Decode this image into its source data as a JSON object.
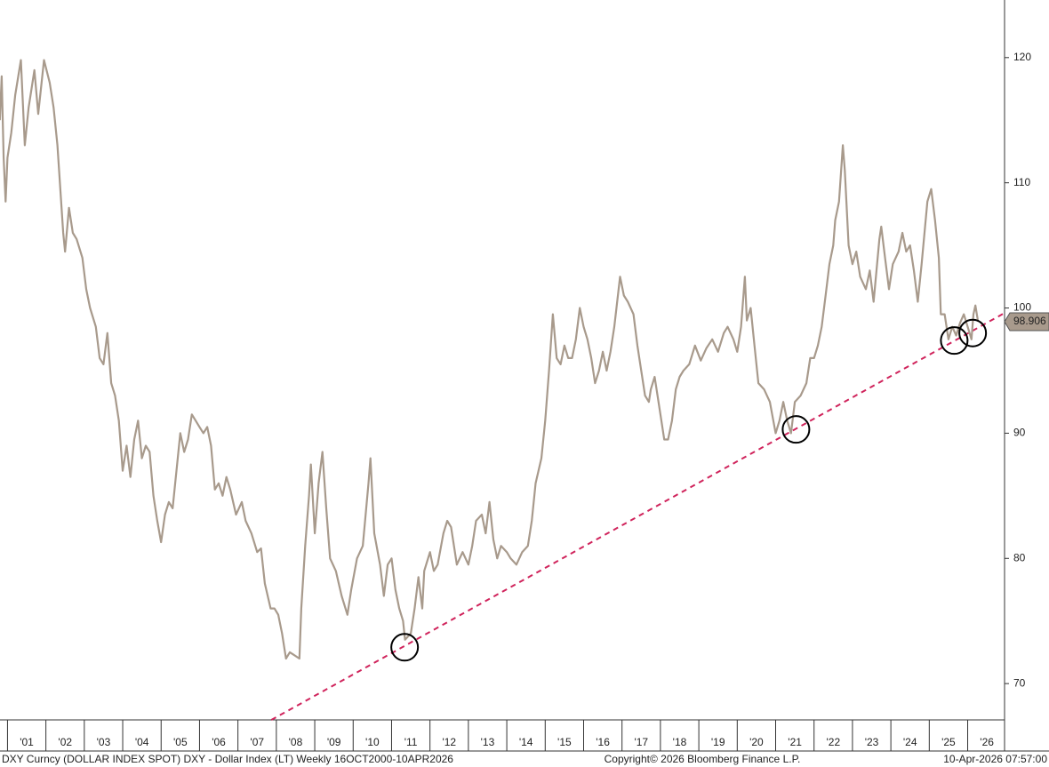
{
  "chart_data": {
    "type": "line",
    "footer_left": "DXY Curncy (DOLLAR INDEX SPOT) DXY - Dollar Index (LT) Weekly 16OCT2000-10APR2026",
    "footer_center": "Copyright© 2026 Bloomberg Finance L.P.",
    "footer_right": "10-Apr-2026 07:57:00",
    "x": [
      2000.8,
      2000.85,
      2000.9,
      2000.95,
      2001.0,
      2001.1,
      2001.2,
      2001.35,
      2001.45,
      2001.55,
      2001.7,
      2001.8,
      2001.95,
      2002.1,
      2002.2,
      2002.3,
      2002.45,
      2002.5,
      2002.6,
      2002.7,
      2002.8,
      2002.95,
      2003.05,
      2003.15,
      2003.3,
      2003.4,
      2003.5,
      2003.6,
      2003.7,
      2003.8,
      2003.9,
      2004.0,
      2004.1,
      2004.2,
      2004.3,
      2004.4,
      2004.5,
      2004.6,
      2004.7,
      2004.8,
      2004.9,
      2005.0,
      2005.1,
      2005.2,
      2005.3,
      2005.4,
      2005.5,
      2005.6,
      2005.7,
      2005.8,
      2005.9,
      2006.0,
      2006.1,
      2006.2,
      2006.3,
      2006.4,
      2006.5,
      2006.6,
      2006.7,
      2006.8,
      2006.95,
      2007.1,
      2007.2,
      2007.35,
      2007.5,
      2007.6,
      2007.7,
      2007.85,
      2007.95,
      2008.05,
      2008.15,
      2008.25,
      2008.35,
      2008.45,
      2008.6,
      2008.65,
      2008.75,
      2008.85,
      2008.9,
      2009.0,
      2009.1,
      2009.2,
      2009.3,
      2009.4,
      2009.55,
      2009.7,
      2009.85,
      2009.95,
      2010.1,
      2010.25,
      2010.4,
      2010.45,
      2010.55,
      2010.7,
      2010.8,
      2010.9,
      2011.0,
      2011.1,
      2011.2,
      2011.3,
      2011.35,
      2011.5,
      2011.6,
      2011.7,
      2011.8,
      2011.85,
      2012.0,
      2012.1,
      2012.2,
      2012.35,
      2012.45,
      2012.55,
      2012.7,
      2012.85,
      2013.0,
      2013.1,
      2013.2,
      2013.35,
      2013.45,
      2013.55,
      2013.65,
      2013.75,
      2013.85,
      2014.0,
      2014.1,
      2014.25,
      2014.4,
      2014.55,
      2014.65,
      2014.75,
      2014.9,
      2015.0,
      2015.1,
      2015.2,
      2015.3,
      2015.4,
      2015.5,
      2015.6,
      2015.7,
      2015.8,
      2015.9,
      2016.0,
      2016.1,
      2016.2,
      2016.3,
      2016.4,
      2016.5,
      2016.6,
      2016.7,
      2016.8,
      2016.95,
      2017.05,
      2017.15,
      2017.3,
      2017.4,
      2017.5,
      2017.6,
      2017.7,
      2017.75,
      2017.85,
      2018.0,
      2018.1,
      2018.2,
      2018.3,
      2018.4,
      2018.5,
      2018.6,
      2018.75,
      2018.9,
      2019.05,
      2019.2,
      2019.35,
      2019.5,
      2019.65,
      2019.75,
      2019.9,
      2020.0,
      2020.1,
      2020.2,
      2020.25,
      2020.35,
      2020.45,
      2020.55,
      2020.7,
      2020.85,
      2021.0,
      2021.1,
      2021.2,
      2021.3,
      2021.4,
      2021.5,
      2021.65,
      2021.8,
      2021.9,
      2022.0,
      2022.1,
      2022.2,
      2022.3,
      2022.4,
      2022.5,
      2022.55,
      2022.65,
      2022.75,
      2022.8,
      2022.9,
      2023.0,
      2023.1,
      2023.2,
      2023.35,
      2023.45,
      2023.55,
      2023.7,
      2023.75,
      2023.85,
      2023.95,
      2024.05,
      2024.2,
      2024.3,
      2024.4,
      2024.5,
      2024.6,
      2024.7,
      2024.8,
      2024.95,
      2025.05,
      2025.15,
      2025.25,
      2025.3,
      2025.4,
      2025.5,
      2025.6,
      2025.7,
      2025.8,
      2025.9,
      2026.0,
      2026.1,
      2026.15,
      2026.2,
      2026.27
    ],
    "series": [
      {
        "color": "#a89a8c",
        "values": [
          115,
          118.5,
          112,
          108.5,
          112,
          114,
          117,
          119.8,
          113,
          116,
          119,
          115.5,
          119.8,
          118,
          116,
          113,
          106,
          104.5,
          108,
          106,
          105.5,
          104,
          101.5,
          100,
          98.5,
          96,
          95.5,
          98,
          94,
          93,
          91,
          87,
          89,
          86.5,
          89.5,
          91,
          88,
          89,
          88.5,
          85,
          83,
          81.3,
          83.5,
          84.5,
          84,
          87,
          90,
          88.5,
          89.5,
          91.5,
          91,
          90.5,
          90,
          90.5,
          89,
          85.5,
          86,
          85,
          86.5,
          85.5,
          83.5,
          84.5,
          83,
          82,
          80.5,
          80.8,
          78,
          76,
          76,
          75.5,
          74,
          72,
          72.5,
          72.3,
          72,
          76,
          81,
          85,
          87.5,
          82,
          86,
          88.5,
          84,
          80,
          79,
          77,
          75.5,
          77.5,
          80,
          81,
          86,
          88,
          82,
          79.5,
          77,
          79.5,
          80,
          77.5,
          76,
          75,
          73.5,
          74,
          76,
          78.5,
          76,
          79,
          80.5,
          79,
          79.5,
          82,
          83,
          82.5,
          79.5,
          80.5,
          79.5,
          81,
          83,
          83.5,
          82,
          84.5,
          81.5,
          80,
          81,
          80.5,
          80,
          79.5,
          80.5,
          81,
          83,
          86,
          88,
          91,
          95,
          99.5,
          96,
          95.5,
          97,
          96,
          96,
          97.5,
          100,
          98.5,
          97.5,
          96,
          94,
          95,
          96.5,
          95,
          96.5,
          98.5,
          102.5,
          101,
          100.5,
          99.5,
          97,
          95,
          93,
          92.5,
          93.5,
          94.5,
          91.5,
          89.5,
          89.5,
          91,
          93.5,
          94.5,
          95,
          95.5,
          97,
          95.8,
          96.8,
          97.5,
          96.5,
          98,
          98.5,
          97.5,
          96.5,
          98.5,
          102.5,
          99,
          100,
          97,
          94,
          93.5,
          92.5,
          90,
          91,
          92.5,
          91,
          90,
          92.5,
          93,
          94,
          96,
          96,
          97,
          98.5,
          101,
          103.5,
          105,
          107,
          108.5,
          113,
          111,
          105,
          103.5,
          104.5,
          102.5,
          101.5,
          103,
          100.5,
          105.5,
          106.5,
          104,
          101.5,
          103.5,
          104.5,
          106,
          104.5,
          105,
          103,
          100.5,
          103.5,
          108.5,
          109.5,
          107,
          104,
          99.5,
          99.5,
          97.5,
          98.5,
          97.8,
          98.8,
          99.5,
          98.5,
          97.5,
          99.5,
          100.2,
          98.9
        ]
      }
    ],
    "last_value": 98.906,
    "trendline": {
      "x": [
        2007.87,
        2026.96
      ],
      "y": [
        67.1,
        99.6
      ],
      "color": "#d0245c"
    },
    "circles": [
      {
        "x": 2011.34,
        "y": 72.9
      },
      {
        "x": 2021.53,
        "y": 90.3
      },
      {
        "x": 2025.65,
        "y": 97.4
      },
      {
        "x": 2026.13,
        "y": 98.0
      }
    ],
    "xlim": [
      2000.805,
      2026.96
    ],
    "xticks": [
      {
        "value": 2001,
        "label": "'01"
      },
      {
        "value": 2002,
        "label": "'02"
      },
      {
        "value": 2003,
        "label": "'03"
      },
      {
        "value": 2004,
        "label": "'04"
      },
      {
        "value": 2005,
        "label": "'05"
      },
      {
        "value": 2006,
        "label": "'06"
      },
      {
        "value": 2007,
        "label": "'07"
      },
      {
        "value": 2008,
        "label": "'08"
      },
      {
        "value": 2009,
        "label": "'09"
      },
      {
        "value": 2010,
        "label": "'10"
      },
      {
        "value": 2011,
        "label": "'11"
      },
      {
        "value": 2012,
        "label": "'12"
      },
      {
        "value": 2013,
        "label": "'13"
      },
      {
        "value": 2014,
        "label": "'14"
      },
      {
        "value": 2015,
        "label": "'15"
      },
      {
        "value": 2016,
        "label": "'16"
      },
      {
        "value": 2017,
        "label": "'17"
      },
      {
        "value": 2018,
        "label": "'18"
      },
      {
        "value": 2019,
        "label": "'19"
      },
      {
        "value": 2020,
        "label": "'20"
      },
      {
        "value": 2021,
        "label": "'21"
      },
      {
        "value": 2022,
        "label": "'22"
      },
      {
        "value": 2023,
        "label": "'23"
      },
      {
        "value": 2024,
        "label": "'24"
      },
      {
        "value": 2025,
        "label": "'25"
      },
      {
        "value": 2026,
        "label": "'26"
      }
    ],
    "ylim": [
      67.1,
      124.6
    ],
    "yticks": [
      70,
      80,
      90,
      100,
      110,
      120
    ]
  }
}
